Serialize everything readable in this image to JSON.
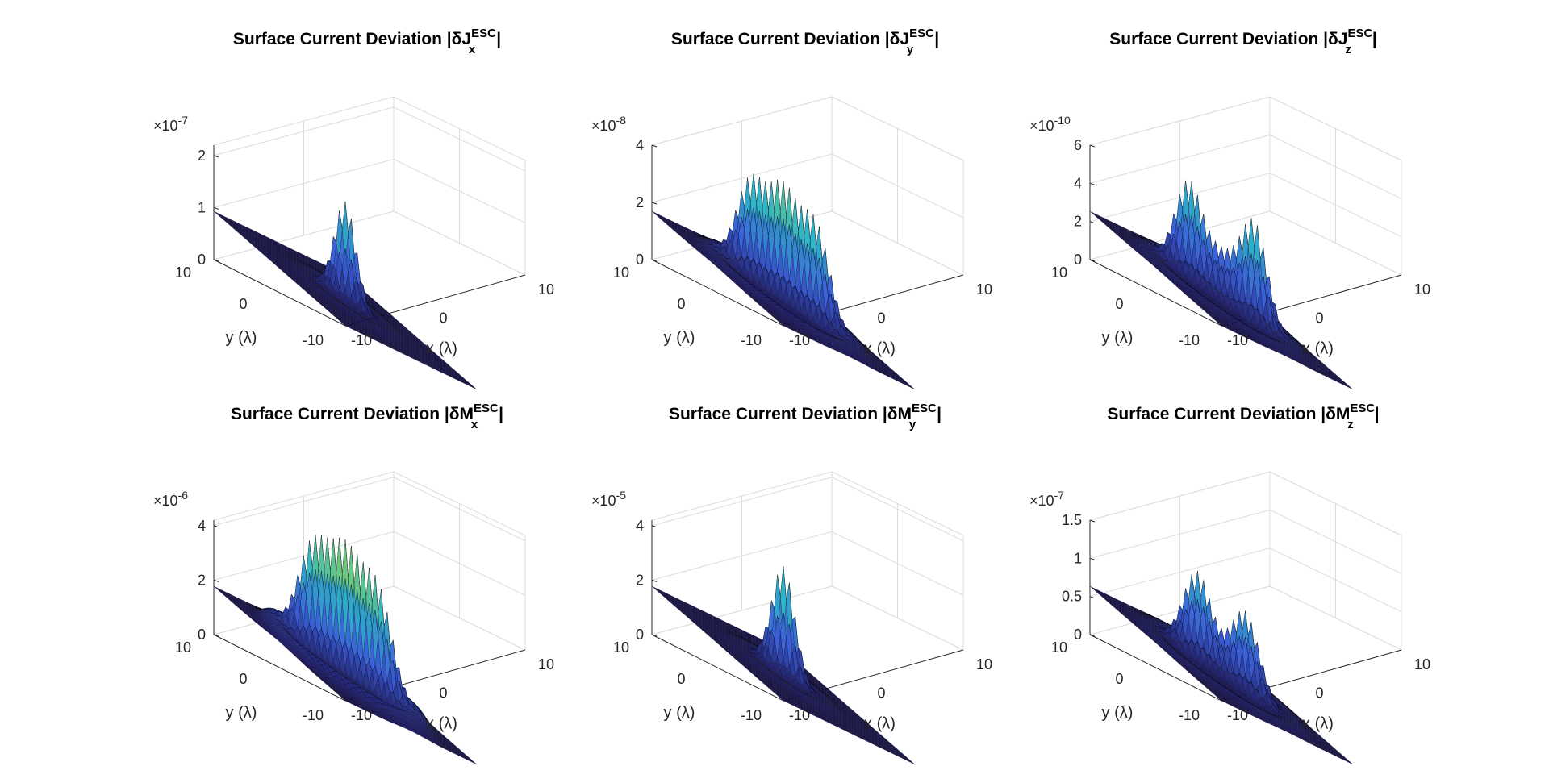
{
  "figure": {
    "background": "#ffffff"
  },
  "colors": {
    "base": "#1f1a5e",
    "mid": "#3b5fd8",
    "high": "#2fb4c9",
    "peak": "#8fd35a",
    "edge": "#000000"
  },
  "chart_data": [
    {
      "type": "surface",
      "title_prefix": "Surface Current Deviation |δ",
      "title_symbol": "J",
      "title_sub": "x",
      "title_sup": "ESC",
      "title_suffix": "|",
      "xlabel": "x (λ)",
      "ylabel": "y (λ)",
      "xlim": [
        -10,
        10
      ],
      "ylim": [
        -10,
        10
      ],
      "zlim": [
        0,
        2.2
      ],
      "x_ticks": [
        "-10",
        "0",
        "10"
      ],
      "y_ticks": [
        "-10",
        "0",
        "10"
      ],
      "z_ticks": [
        0,
        1,
        2
      ],
      "z_tick_labels": [
        "0",
        "1",
        "2"
      ],
      "z_multiplier": "×10",
      "z_exponent": "-7",
      "peaks": [
        {
          "x": 0,
          "y": 0,
          "z": 1.9,
          "spread": 1.2
        }
      ],
      "ring": {
        "radius": 5,
        "z": 0.05
      }
    },
    {
      "type": "surface",
      "title_prefix": "Surface Current Deviation |δ",
      "title_symbol": "J",
      "title_sub": "y",
      "title_sup": "ESC",
      "title_suffix": "|",
      "xlabel": "x (λ)",
      "ylabel": "y (λ)",
      "xlim": [
        -10,
        10
      ],
      "ylim": [
        -10,
        10
      ],
      "zlim": [
        0,
        4
      ],
      "x_ticks": [
        "-10",
        "0",
        "10"
      ],
      "y_ticks": [
        "-10",
        "0",
        "10"
      ],
      "z_ticks": [
        0,
        2,
        4
      ],
      "z_tick_labels": [
        "0",
        "2",
        "4"
      ],
      "z_multiplier": "×10",
      "z_exponent": "-8",
      "peaks": [
        {
          "x": -2.5,
          "y": 2.5,
          "z": 3.3,
          "spread": 1.6
        },
        {
          "x": 0,
          "y": 0,
          "z": 3.6,
          "spread": 1.6
        },
        {
          "x": 2.5,
          "y": -2.5,
          "z": 3.3,
          "spread": 1.6
        }
      ],
      "ring": {
        "radius": 8,
        "z": 0.25
      }
    },
    {
      "type": "surface",
      "title_prefix": "Surface Current Deviation |δ",
      "title_symbol": "J",
      "title_sub": "z",
      "title_sup": "ESC",
      "title_suffix": "|",
      "xlabel": "x (λ)",
      "ylabel": "y (λ)",
      "xlim": [
        -10,
        10
      ],
      "ylim": [
        -10,
        10
      ],
      "zlim": [
        0,
        6
      ],
      "x_ticks": [
        "-10",
        "0",
        "10"
      ],
      "y_ticks": [
        "-10",
        "0",
        "10"
      ],
      "z_ticks": [
        0,
        2,
        4,
        6
      ],
      "z_tick_labels": [
        "0",
        "2",
        "4",
        "6"
      ],
      "z_multiplier": "×10",
      "z_exponent": "-10",
      "peaks": [
        {
          "x": -2.5,
          "y": 2.5,
          "z": 5.0,
          "spread": 1.5
        },
        {
          "x": 2.5,
          "y": -2.5,
          "z": 5.2,
          "spread": 1.5
        },
        {
          "x": 0,
          "y": 0,
          "z": 2.2,
          "spread": 1.6
        }
      ],
      "ring": {
        "radius": 8,
        "z": 0.3
      }
    },
    {
      "type": "surface",
      "title_prefix": "Surface Current Deviation |δ",
      "title_symbol": "M",
      "title_sub": "x",
      "title_sup": "ESC",
      "title_suffix": "|",
      "xlabel": "x (λ)",
      "ylabel": "y (λ)",
      "xlim": [
        -10,
        10
      ],
      "ylim": [
        -10,
        10
      ],
      "zlim": [
        0,
        4.2
      ],
      "x_ticks": [
        "-10",
        "0",
        "10"
      ],
      "y_ticks": [
        "-10",
        "0",
        "10"
      ],
      "z_ticks": [
        0,
        2,
        4
      ],
      "z_tick_labels": [
        "0",
        "2",
        "4"
      ],
      "z_multiplier": "×10",
      "z_exponent": "-6",
      "peaks": [
        {
          "x": -2.5,
          "y": 2.5,
          "z": 3.8,
          "spread": 1.7
        },
        {
          "x": 0,
          "y": 0,
          "z": 4.1,
          "spread": 1.7
        },
        {
          "x": 2.5,
          "y": -2.5,
          "z": 3.8,
          "spread": 1.7
        }
      ],
      "ring": {
        "radius": 8,
        "z": 0.45
      }
    },
    {
      "type": "surface",
      "title_prefix": "Surface Current Deviation |δ",
      "title_symbol": "M",
      "title_sub": "y",
      "title_sup": "ESC",
      "title_suffix": "|",
      "xlabel": "x (λ)",
      "ylabel": "y (λ)",
      "xlim": [
        -10,
        10
      ],
      "ylim": [
        -10,
        10
      ],
      "zlim": [
        0,
        4.2
      ],
      "x_ticks": [
        "-10",
        "0",
        "10"
      ],
      "y_ticks": [
        "-10",
        "0",
        "10"
      ],
      "z_ticks": [
        0,
        2,
        4
      ],
      "z_tick_labels": [
        "0",
        "2",
        "4"
      ],
      "z_multiplier": "×10",
      "z_exponent": "-5",
      "peaks": [
        {
          "x": 0,
          "y": 0,
          "z": 4.0,
          "spread": 1.3
        }
      ],
      "ring": {
        "radius": 5,
        "z": 0.12
      }
    },
    {
      "type": "surface",
      "title_prefix": "Surface Current Deviation |δ",
      "title_symbol": "M",
      "title_sub": "z",
      "title_sup": "ESC",
      "title_suffix": "|",
      "xlabel": "x (λ)",
      "ylabel": "y (λ)",
      "xlim": [
        -10,
        10
      ],
      "ylim": [
        -10,
        10
      ],
      "zlim": [
        0,
        1.5
      ],
      "x_ticks": [
        "-10",
        "0",
        "10"
      ],
      "y_ticks": [
        "-10",
        "0",
        "10"
      ],
      "z_ticks": [
        0,
        0.5,
        1,
        1.5
      ],
      "z_tick_labels": [
        "0",
        "0.5",
        "1",
        "1.5"
      ],
      "z_multiplier": "×10",
      "z_exponent": "-7",
      "peaks": [
        {
          "x": -1.8,
          "y": 1.8,
          "z": 1.15,
          "spread": 1.6
        },
        {
          "x": 1.8,
          "y": -1.8,
          "z": 1.05,
          "spread": 1.6
        }
      ],
      "ring": {
        "radius": 8,
        "z": 0.06
      }
    }
  ]
}
